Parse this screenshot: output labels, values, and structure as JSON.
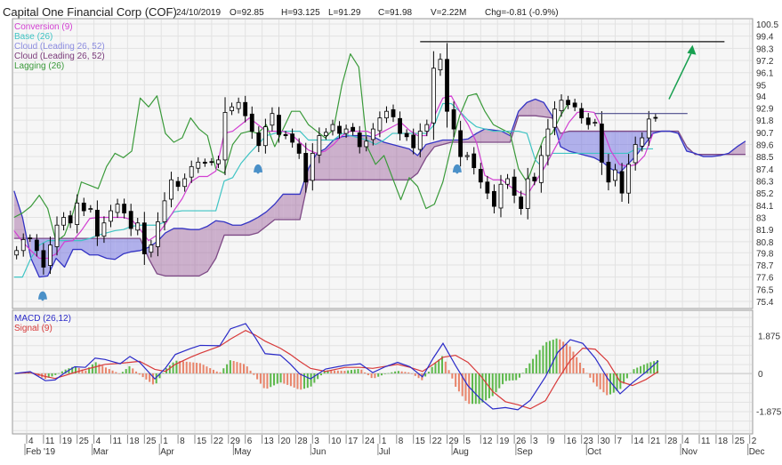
{
  "header": {
    "title": "Capital One Financial Corp (COF)",
    "date": "24/10/2019",
    "open": "O=92.85",
    "high": "H=93.125",
    "low": "L=91.29",
    "close": "C=91.98",
    "volume": "V=2.22M",
    "change": "Chg=-0.81 (-0.9%)"
  },
  "colors": {
    "conversion": "#d23fd2",
    "base": "#3fc4c4",
    "cloud_a_label": "#8c8ce0",
    "cloud_b_label": "#7a3a7a",
    "lagging": "#3a9a3a",
    "span_a": "#3434c4",
    "span_b": "#7e4a86",
    "cloud_bull": "#6a6ae0",
    "cloud_bear": "#9a5a9a",
    "macd": "#2a2ac8",
    "signal": "#d83a3a",
    "hist_up": "#5cb84a",
    "hist_down": "#e8846a",
    "grid": "#e2e2e2",
    "panel_bg": "#f6f6f6"
  },
  "chart_data": [
    {
      "type": "candlestick",
      "title": "Capital One Financial Corp (COF)",
      "x_unit": "weeks since 4 Feb 2019",
      "legend": [
        "Conversion (9)",
        "Base (26)",
        "Cloud (Leading 26, 52)",
        "Cloud (Leading 26, 52)",
        "Lagging (26)"
      ],
      "legend_placement": "top-left",
      "ylim": [
        75.4,
        100.5
      ],
      "y_ticks": [
        "100.5",
        "99.4",
        "98.3",
        "97.2",
        "96.1",
        "95",
        "94",
        "92.9",
        "91.8",
        "90.7",
        "89.6",
        "88.5",
        "87.4",
        "86.3",
        "85.2",
        "84.1",
        "83",
        "81.9",
        "80.8",
        "79.8",
        "78.7",
        "77.6",
        "76.5",
        "75.4"
      ],
      "candles": {
        "start_week": -0.6,
        "step_weeks": 0.4,
        "closes": [
          80.0,
          81.0,
          81.1,
          80.0,
          78.5,
          80.5,
          82.3,
          83.0,
          82.5,
          84.3,
          83.6,
          83.8,
          81.3,
          82.5,
          83.6,
          84.2,
          83.4,
          82.0,
          82.5,
          79.7,
          80.5,
          82.6,
          84.5,
          86.4,
          85.8,
          86.5,
          87.6,
          88.0,
          87.9,
          88.0,
          88.2,
          92.5,
          93.0,
          93.4,
          92.2,
          90.8,
          89.5,
          91.2,
          92.4,
          90.5,
          90.4,
          89.8,
          88.8,
          86.2,
          88.8,
          90.4,
          90.7,
          91.4,
          90.6,
          91.0,
          90.8,
          89.4,
          89.9,
          91.0,
          92.0,
          92.6,
          92.1,
          90.6,
          90.3,
          89.3,
          90.8,
          91.4,
          96.5,
          97.3,
          92.6,
          91.0,
          88.5,
          88.6,
          87.5,
          86.2,
          85.2,
          84.0,
          86.0,
          86.5,
          85.0,
          83.8,
          86.5,
          86.3,
          88.6,
          91.0,
          92.8,
          93.6,
          93.2,
          93.0,
          92.0,
          91.4,
          91.6,
          88.0,
          86.2,
          87.3,
          85.2,
          87.8,
          89.6,
          90.2,
          91.9,
          91.98
        ]
      },
      "lines": {
        "start_week": -0.75,
        "step_weeks": 0.5,
        "conversion": [
          81.8,
          80.8,
          80.0,
          79.3,
          79.3,
          79.7,
          80.8,
          80.9,
          81.8,
          82.9,
          83.0,
          83.0,
          83.0,
          83.0,
          82.8,
          81.9,
          80.9,
          81.4,
          82.4,
          83.6,
          84.7,
          86.2,
          86.7,
          86.7,
          87.2,
          90.6,
          90.8,
          91.4,
          92.0,
          91.4,
          90.8,
          90.8,
          90.8,
          90.5,
          89.8,
          89.1,
          88.8,
          89.0,
          89.6,
          90.4,
          90.8,
          90.8,
          90.8,
          90.4,
          90.8,
          91.2,
          91.6,
          90.9,
          90.4,
          90.4,
          92.2,
          93.8,
          94.0,
          92.6,
          91.4,
          89.8,
          86.8,
          86.4,
          86.4,
          85.8,
          85.3,
          85.0,
          86.2,
          87.4,
          88.8,
          90.2,
          91.6,
          92.5,
          92.6,
          92.5,
          91.0,
          89.0,
          87.8,
          87.6,
          87.8,
          88.6,
          90.6
        ],
        "base": [
          77.6,
          77.6,
          79.3,
          80.5,
          80.9,
          80.9,
          80.9,
          80.9,
          80.9,
          81.1,
          81.4,
          81.6,
          81.8,
          81.9,
          82.2,
          82.3,
          82.3,
          82.3,
          82.6,
          83.5,
          83.6,
          83.6,
          83.6,
          83.6,
          83.6,
          86.3,
          86.6,
          87.9,
          88.8,
          89.6,
          90.4,
          90.6,
          90.8,
          90.8,
          90.8,
          90.0,
          90.0,
          90.0,
          90.0,
          90.6,
          90.4,
          90.2,
          90.0,
          89.6,
          90.0,
          90.6,
          90.6,
          90.6,
          90.6,
          90.6,
          91.4,
          93.3,
          93.3,
          92.6,
          91.8,
          91.2,
          91.0,
          90.8,
          90.8,
          90.8,
          90.8,
          90.6,
          88.2,
          87.4,
          88.8,
          88.8,
          88.8,
          88.8,
          88.8,
          88.8,
          88.8,
          88.8,
          88.8,
          88.8,
          89.2,
          89.2,
          89.2
        ],
        "lagging": [
          83.0,
          83.4,
          84.0,
          85.0,
          83.8,
          80.8,
          81.4,
          83.4,
          86.2,
          85.9,
          85.6,
          87.6,
          88.8,
          88.4,
          89.0,
          93.8,
          93.0,
          94.0,
          90.6,
          89.8,
          90.2,
          92.0,
          91.0,
          90.4,
          87.4,
          87.0,
          89.6,
          90.6,
          90.8,
          90.6,
          91.4,
          89.4,
          91.0,
          92.6,
          92.6,
          91.4,
          90.8,
          90.2,
          91.0,
          95.0,
          97.8,
          96.6,
          89.4,
          87.8,
          88.6,
          86.6,
          84.6,
          86.6,
          85.8,
          83.8,
          84.2,
          86.2,
          89.4,
          92.2,
          94.0,
          94.2,
          92.6,
          91.4,
          91.0,
          90.6,
          87.4,
          86.2,
          88.2,
          90.2,
          90.6,
          92.2,
          93.4
        ],
        "span_a": [
          85.4,
          83.0,
          79.3,
          77.6,
          77.7,
          79.3,
          78.5,
          80.1,
          80.1,
          79.6,
          79.6,
          79.3,
          79.2,
          79.7,
          79.9,
          80.0,
          80.3,
          80.8,
          81.6,
          82.0,
          82.0,
          81.9,
          81.9,
          82.2,
          82.7,
          82.6,
          82.3,
          82.3,
          82.6,
          83.0,
          83.5,
          84.2,
          85.1,
          85.1,
          85.1,
          87.4,
          88.8,
          89.2,
          90.0,
          90.3,
          90.4,
          90.4,
          90.4,
          90.2,
          89.8,
          89.6,
          89.4,
          89.2,
          88.6,
          89.6,
          89.8,
          90.0,
          90.0,
          90.0,
          90.1,
          90.6,
          91.0,
          90.9,
          90.8,
          90.4,
          92.6,
          93.4,
          93.7,
          93.4,
          92.2,
          89.4,
          89.0,
          88.8,
          88.6,
          88.4,
          88.0,
          87.4,
          87.0,
          87.8,
          88.6,
          89.6,
          90.6,
          90.8,
          90.8,
          90.6,
          89.0,
          88.8,
          88.5,
          88.5,
          88.6,
          88.8,
          89.4,
          89.9
        ],
        "span_b": [
          81.1,
          81.1,
          81.1,
          81.1,
          81.1,
          81.1,
          81.1,
          81.1,
          81.1,
          81.1,
          81.1,
          81.1,
          81.1,
          81.1,
          81.1,
          81.1,
          79.3,
          77.9,
          77.7,
          77.7,
          77.7,
          77.7,
          77.7,
          78.1,
          79.3,
          81.4,
          81.4,
          81.4,
          81.4,
          81.6,
          82.2,
          82.8,
          82.8,
          82.8,
          82.8,
          86.4,
          86.4,
          86.4,
          86.4,
          86.4,
          86.4,
          86.4,
          86.4,
          86.4,
          86.4,
          86.4,
          86.4,
          86.4,
          87.0,
          88.4,
          89.4,
          89.6,
          89.8,
          89.8,
          89.8,
          89.8,
          89.8,
          89.8,
          89.8,
          89.8,
          92.2,
          92.2,
          92.2,
          92.1,
          92.0,
          90.6,
          90.8,
          90.8,
          90.8,
          90.8,
          90.8,
          90.8,
          90.8,
          90.8,
          90.8,
          90.8,
          90.8,
          90.8,
          90.8,
          90.8,
          89.4,
          88.7,
          88.7,
          88.7,
          88.7,
          88.7,
          88.7,
          88.7
        ]
      },
      "annotations": {
        "resistance": {
          "price": 98.9,
          "from_week": 23.4,
          "to_week": 41.5
        },
        "level": {
          "price": 92.4,
          "from_week": 33.8,
          "to_week": 39.3
        },
        "target_arrow": {
          "from": [
            38.2,
            93.7
          ],
          "to": [
            39.6,
            98.6
          ]
        },
        "alerts": [
          [
            0.95,
            75.9
          ],
          [
            13.76,
            87.4
          ],
          [
            25.6,
            87.4
          ]
        ]
      }
    },
    {
      "type": "line",
      "title": "MACD",
      "legend": [
        "MACD (26,12)",
        "Signal (9)"
      ],
      "legend_placement": "top-left",
      "ylim": [
        -3.0,
        3.0
      ],
      "y_ticks": [
        "1.875",
        "0",
        "-1.875"
      ],
      "y_tick_values": [
        1.875,
        0,
        -1.875
      ],
      "x": [
        -0.69,
        0.21,
        1.11,
        1.69,
        2.28,
        2.86,
        3.49,
        4.07,
        4.66,
        5.56,
        6.14,
        6.72,
        7.62,
        8.25,
        8.84,
        9.74,
        10.32,
        11.48,
        12.12,
        13.02,
        13.6,
        14.18,
        15.08,
        15.66,
        16.24,
        16.88,
        17.78,
        18.94,
        19.84,
        20.58,
        21.32,
        22.06,
        22.8,
        23.54,
        24.18,
        24.76,
        25.5,
        26.24,
        26.98,
        27.72,
        28.47,
        29.21,
        29.95,
        30.85,
        31.59,
        32.33,
        33.07,
        33.81,
        34.55,
        35.29,
        36.03,
        36.83,
        37.57
      ],
      "series": [
        {
          "name": "MACD (26,12)",
          "values": [
            0,
            0.09,
            -0.36,
            -0.32,
            0.04,
            0.33,
            0.3,
            0.76,
            0.69,
            0.48,
            0.84,
            0.55,
            -0.27,
            0.26,
            0.94,
            1.23,
            1.39,
            1.37,
            2.21,
            2.47,
            1.77,
            0.98,
            0.91,
            0.48,
            -0.03,
            -0.27,
            0.22,
            0.4,
            0.48,
            0.04,
            0.33,
            0.55,
            0.33,
            -0.17,
            0.76,
            1.49,
            0.4,
            -0.61,
            -1.26,
            -1.76,
            -1.69,
            -1.8,
            -1.33,
            -0.17,
            1.05,
            1.67,
            1.49,
            0.76,
            -0.25,
            -1.01,
            -0.46,
            0.07,
            0.62
          ]
        },
        {
          "name": "Signal (9)",
          "values": [
            0,
            0.05,
            -0.15,
            -0.25,
            -0.1,
            0.05,
            0.2,
            0.32,
            0.45,
            0.5,
            0.55,
            0.6,
            0.2,
            0.1,
            0.45,
            0.8,
            1.0,
            1.35,
            1.7,
            2.13,
            1.9,
            1.6,
            1.25,
            0.95,
            0.6,
            0.25,
            0.1,
            0.3,
            0.3,
            0.25,
            0.35,
            0.45,
            0.3,
            0.1,
            0.45,
            0.8,
            0.9,
            0.55,
            -0.1,
            -0.9,
            -1.4,
            -1.55,
            -1.75,
            -1.35,
            -0.3,
            0.65,
            1.25,
            1.2,
            0.6,
            -0.4,
            -0.6,
            -0.3,
            0.1
          ]
        }
      ]
    }
  ],
  "x_axis": {
    "day_labels": [
      "4",
      "11",
      "19",
      "25",
      "4",
      "11",
      "18",
      "25",
      "1",
      "8",
      "15",
      "22",
      "29",
      "6",
      "13",
      "20",
      "28",
      "3",
      "10",
      "17",
      "24",
      "1",
      "8",
      "15",
      "22",
      "29",
      "5",
      "12",
      "19",
      "26",
      "3",
      "9",
      "16",
      "23",
      "30",
      "7",
      "14",
      "21",
      "28",
      "4",
      "11",
      "18",
      "25",
      "2"
    ],
    "months": [
      {
        "label": "Feb '19",
        "week": 0
      },
      {
        "label": "Mar",
        "week": 4
      },
      {
        "label": "Apr",
        "week": 8
      },
      {
        "label": "May",
        "week": 12.4
      },
      {
        "label": "Jun",
        "week": 17
      },
      {
        "label": "Jul",
        "week": 21
      },
      {
        "label": "Aug",
        "week": 25.4
      },
      {
        "label": "Sep",
        "week": 29.2
      },
      {
        "label": "Oct",
        "week": 33.4
      },
      {
        "label": "Nov",
        "week": 39
      },
      {
        "label": "Dec",
        "week": 43
      }
    ]
  }
}
